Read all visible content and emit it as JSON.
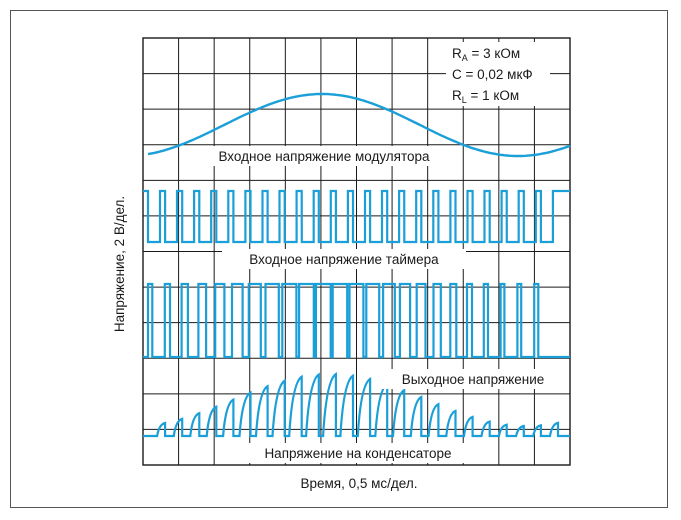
{
  "chart_data": {
    "type": "line",
    "xlabel": "Время, 0,5 мс/дел.",
    "ylabel": "Напряжение, 2 В/дел.",
    "grid": true,
    "x_divisions": 12,
    "y_divisions": 12,
    "params": {
      "ra": {
        "base": "R",
        "sub": "A",
        "rest": " = 3 кОм"
      },
      "c": "C = 0,02 мкФ",
      "rl": {
        "base": "R",
        "sub": "L",
        "rest": " = 1 кОм"
      }
    },
    "series": [
      {
        "name": "Входное напряжение модулятора",
        "kind": "sine",
        "color": "#1a9fd8"
      },
      {
        "name": "Входное напряжение таймера",
        "kind": "clock",
        "color": "#1a9fd8"
      },
      {
        "name": "Выходное напряжение",
        "kind": "pwm",
        "color": "#1a9fd8"
      },
      {
        "name": "Напряжение на конденсаторе",
        "kind": "sawtooth",
        "color": "#1a9fd8"
      }
    ]
  }
}
